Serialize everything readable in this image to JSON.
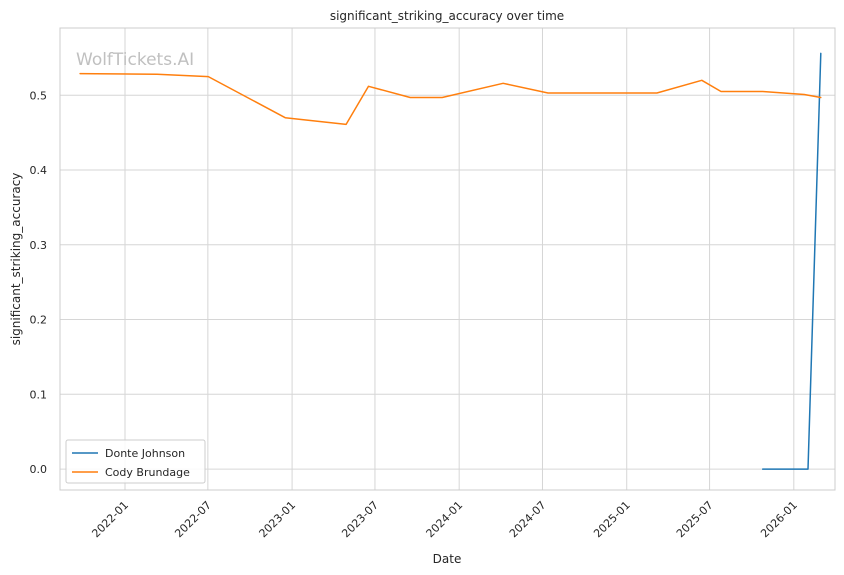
{
  "chart_data": {
    "type": "line",
    "title": "significant_striking_accuracy over time",
    "xlabel": "Date",
    "ylabel": "significant_striking_accuracy",
    "watermark": "WolfTickets.AI",
    "x_ticks": [
      "2022-01",
      "2022-07",
      "2023-01",
      "2023-07",
      "2024-01",
      "2024-07",
      "2025-01",
      "2025-07",
      "2026-01"
    ],
    "y_ticks": [
      "0.0",
      "0.1",
      "0.2",
      "0.3",
      "0.4",
      "0.5"
    ],
    "xlim": [
      "2021-08-12",
      "2026-04-01"
    ],
    "ylim": [
      -0.028,
      0.59
    ],
    "grid": true,
    "legend_position": "lower-left",
    "series": [
      {
        "name": "Donte Johnson",
        "color": "#1f77b4",
        "points": [
          {
            "x": "2025-10-25",
            "y": 0.0
          },
          {
            "x": "2026-02-01",
            "y": 0.0
          },
          {
            "x": "2026-03-01",
            "y": 0.556
          }
        ]
      },
      {
        "name": "Cody Brundage",
        "color": "#ff7f0e",
        "points": [
          {
            "x": "2021-09-25",
            "y": 0.529
          },
          {
            "x": "2022-03-12",
            "y": 0.528
          },
          {
            "x": "2022-07-02",
            "y": 0.525
          },
          {
            "x": "2022-12-17",
            "y": 0.47
          },
          {
            "x": "2023-04-29",
            "y": 0.461
          },
          {
            "x": "2023-06-17",
            "y": 0.512
          },
          {
            "x": "2023-09-16",
            "y": 0.497
          },
          {
            "x": "2023-11-25",
            "y": 0.497
          },
          {
            "x": "2024-04-06",
            "y": 0.516
          },
          {
            "x": "2024-07-13",
            "y": 0.503
          },
          {
            "x": "2025-03-08",
            "y": 0.503
          },
          {
            "x": "2025-06-14",
            "y": 0.52
          },
          {
            "x": "2025-07-26",
            "y": 0.505
          },
          {
            "x": "2025-10-25",
            "y": 0.505
          },
          {
            "x": "2026-01-24",
            "y": 0.501
          },
          {
            "x": "2026-03-01",
            "y": 0.497
          }
        ]
      }
    ]
  }
}
